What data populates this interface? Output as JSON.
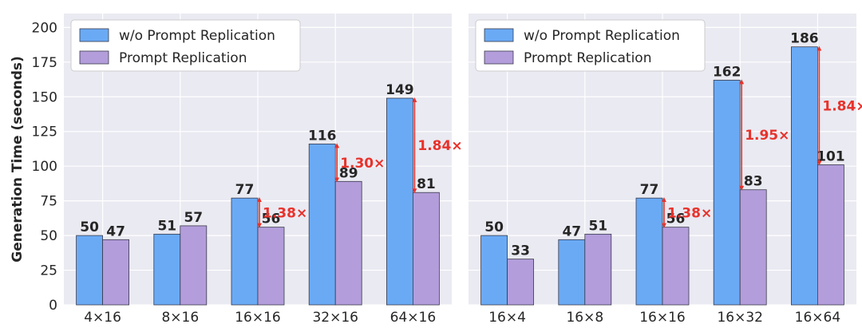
{
  "chart_data": [
    {
      "type": "bar",
      "ylabel": "Generation Time (seconds)",
      "ylim": [
        0,
        210
      ],
      "yticks": [
        0,
        25,
        50,
        75,
        100,
        125,
        150,
        175,
        200
      ],
      "categories": [
        "4×16",
        "8×16",
        "16×16",
        "32×16",
        "64×16"
      ],
      "series": [
        {
          "name": "w/o Prompt Replication",
          "values": [
            50,
            51,
            77,
            116,
            149
          ],
          "color": "#6aaaf5"
        },
        {
          "name": "Prompt Replication",
          "values": [
            47,
            57,
            56,
            89,
            81
          ],
          "color": "#b39ddb"
        }
      ],
      "speedups": [
        {
          "category_index": 2,
          "label": "1.38×"
        },
        {
          "category_index": 3,
          "label": "1.30×"
        },
        {
          "category_index": 4,
          "label": "1.84×"
        }
      ],
      "legend": "top-left",
      "grid": true
    },
    {
      "type": "bar",
      "ylim": [
        0,
        210
      ],
      "categories": [
        "16×4",
        "16×8",
        "16×16",
        "16×32",
        "16×64"
      ],
      "series": [
        {
          "name": "w/o Prompt Replication",
          "values": [
            50,
            47,
            77,
            162,
            186
          ],
          "color": "#6aaaf5"
        },
        {
          "name": "Prompt Replication",
          "values": [
            33,
            51,
            56,
            83,
            101
          ],
          "color": "#b39ddb"
        }
      ],
      "speedups": [
        {
          "category_index": 2,
          "label": "1.38×"
        },
        {
          "category_index": 3,
          "label": "1.95×"
        },
        {
          "category_index": 4,
          "label": "1.84×"
        }
      ],
      "legend": "top-left",
      "grid": true
    }
  ],
  "colors": {
    "background": "#eaeaf2",
    "grid": "#ffffff",
    "annotation": "#e8322b"
  }
}
